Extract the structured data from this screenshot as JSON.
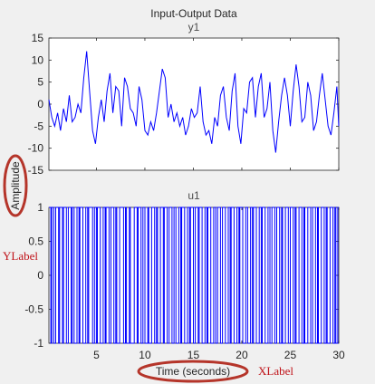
{
  "figure": {
    "title": "Input-Output Data",
    "ylabel": "Amplitude",
    "xlabel": "Time (seconds)"
  },
  "annotations": {
    "ylabel_callout": "YLabel",
    "xlabel_callout": "XLabel"
  },
  "colors": {
    "background": "#f0f0f0",
    "axes_fill": "#ffffff",
    "line": "#0000ff",
    "callout": "#c0141a"
  },
  "chart_data": [
    {
      "type": "line",
      "title": "y1",
      "xlim": [
        0.1,
        30
      ],
      "ylim": [
        -15,
        15
      ],
      "yticks": [
        -15,
        -10,
        -5,
        0,
        5,
        10,
        15
      ],
      "xticks": [
        5,
        10,
        15,
        20,
        25,
        30
      ],
      "show_xticklabels": false,
      "series": [
        {
          "x": [
            0.1,
            0.4,
            0.7,
            1.0,
            1.3,
            1.6,
            1.9,
            2.2,
            2.5,
            2.8,
            3.1,
            3.4,
            3.7,
            4.0,
            4.3,
            4.6,
            4.9,
            5.2,
            5.5,
            5.8,
            6.1,
            6.4,
            6.7,
            7.0,
            7.3,
            7.6,
            7.9,
            8.2,
            8.5,
            8.8,
            9.1,
            9.4,
            9.7,
            10.0,
            10.3,
            10.6,
            10.9,
            11.2,
            11.5,
            11.8,
            12.1,
            12.4,
            12.7,
            13.0,
            13.3,
            13.6,
            13.9,
            14.2,
            14.5,
            14.8,
            15.1,
            15.4,
            15.7,
            16.0,
            16.3,
            16.6,
            16.9,
            17.2,
            17.5,
            17.8,
            18.1,
            18.4,
            18.7,
            19.0,
            19.3,
            19.6,
            19.9,
            20.2,
            20.5,
            20.8,
            21.1,
            21.4,
            21.7,
            22.0,
            22.3,
            22.6,
            22.9,
            23.2,
            23.5,
            23.8,
            24.1,
            24.4,
            24.7,
            25.0,
            25.3,
            25.6,
            25.9,
            26.2,
            26.5,
            26.8,
            27.1,
            27.4,
            27.7,
            28.0,
            28.3,
            28.6,
            28.9,
            29.2,
            29.5,
            29.8,
            30.0
          ],
          "values": [
            1,
            -3,
            -5,
            -2,
            -6,
            -1,
            -4,
            2,
            -4,
            -3,
            0,
            -2,
            6,
            12,
            3,
            -6,
            -9,
            -3,
            1,
            -4,
            3,
            7,
            -2,
            4,
            3,
            -5,
            6,
            4,
            -1,
            -2,
            -5,
            4,
            1,
            -6,
            -7,
            -4,
            -6,
            -2,
            3,
            8,
            6,
            -3,
            0,
            -4,
            -2,
            -5,
            -3,
            -7,
            -5,
            -1,
            -3,
            -2,
            4,
            -4,
            -7,
            -6,
            -9,
            -3,
            -5,
            2,
            4,
            -3,
            -6,
            3,
            7,
            -5,
            -9,
            -1,
            -2,
            5,
            6,
            -3,
            4,
            7,
            -3,
            -1,
            5,
            -6,
            -11,
            -4,
            2,
            6,
            2,
            -5,
            3,
            9,
            4,
            -4,
            -3,
            5,
            2,
            -6,
            -4,
            2,
            7,
            1,
            -5,
            -7,
            -2,
            4,
            -5
          ]
        }
      ]
    },
    {
      "type": "bar",
      "style": "stairs",
      "title": "u1",
      "xlim": [
        0.1,
        30
      ],
      "ylim": [
        -1,
        1
      ],
      "yticks": [
        -1,
        -0.5,
        0,
        0.5,
        1
      ],
      "yticklabels": [
        "-1",
        "-0.5",
        "0",
        "0.5",
        "1"
      ],
      "xticks": [
        5,
        10,
        15,
        20,
        25,
        30
      ],
      "series": [
        {
          "levels": [
            1,
            -1
          ],
          "switch_times": [
            0.3,
            0.4,
            0.6,
            0.8,
            1.1,
            1.2,
            1.5,
            1.6,
            1.9,
            2.1,
            2.4,
            2.5,
            2.7,
            3.0,
            3.2,
            3.3,
            3.6,
            3.9,
            4.1,
            4.2,
            4.6,
            4.8,
            5.0,
            5.1,
            5.4,
            5.7,
            5.9,
            6.0,
            6.3,
            6.5,
            6.8,
            7.0,
            7.1,
            7.4,
            7.8,
            8.0,
            8.1,
            8.4,
            8.5,
            8.9,
            9.2,
            9.3,
            9.6,
            9.8,
            10.0,
            10.3,
            10.4,
            10.7,
            11.0,
            11.2,
            11.3,
            11.6,
            11.9,
            12.0,
            12.3,
            12.5,
            12.8,
            13.0,
            13.2,
            13.5,
            13.7,
            13.8,
            14.1,
            14.4,
            14.6,
            14.7,
            15.0,
            15.2,
            15.5,
            15.6,
            15.9,
            16.2,
            16.4,
            16.5,
            16.8,
            17.1,
            17.3,
            17.5,
            17.8,
            18.0,
            18.3,
            18.6,
            18.8,
            18.9,
            19.2,
            19.5,
            19.7,
            19.8,
            20.1,
            20.4,
            20.6,
            20.9,
            21.1,
            21.2,
            21.5,
            21.8,
            22.0,
            22.1,
            22.4,
            22.7,
            22.9,
            23.1,
            23.4,
            23.6,
            23.9,
            24.1,
            24.2,
            24.5,
            24.8,
            25.0,
            25.3,
            25.5,
            25.6,
            25.9,
            26.2,
            26.4,
            26.5,
            26.8,
            27.1,
            27.3,
            27.6,
            27.8,
            27.9,
            28.2,
            28.5,
            28.7,
            28.8,
            29.1,
            29.4,
            29.6,
            29.7,
            29.9
          ]
        }
      ]
    }
  ]
}
